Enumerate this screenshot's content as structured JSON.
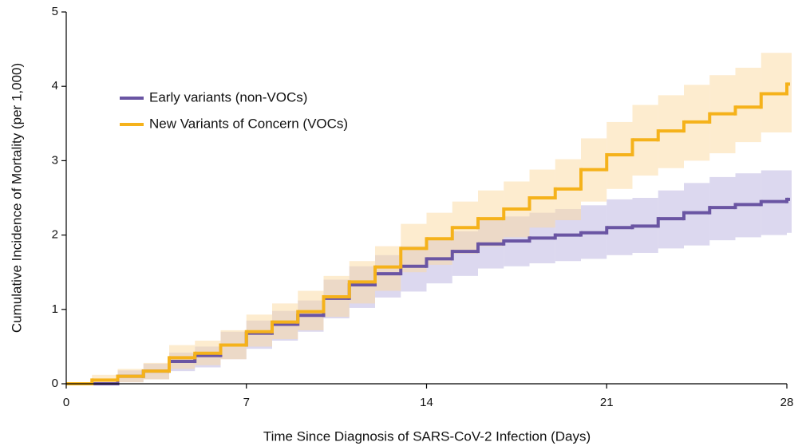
{
  "chart_data": {
    "type": "step",
    "x_label": "Time Since Diagnosis of SARS-CoV-2 Infection (Days)",
    "y_label": "Cumulative Incidence of Mortality (per 1,000)",
    "x": [
      0,
      1,
      2,
      3,
      4,
      5,
      6,
      7,
      8,
      9,
      10,
      11,
      12,
      13,
      14,
      15,
      16,
      17,
      18,
      19,
      20,
      21,
      22,
      23,
      24,
      25,
      26,
      27,
      28
    ],
    "xlim": [
      0,
      28
    ],
    "xticks": [
      0,
      7,
      14,
      21,
      28
    ],
    "ylim": [
      0,
      5
    ],
    "yticks": [
      0,
      1,
      2,
      3,
      4,
      5
    ],
    "series": [
      {
        "name": "Early variants (non-VOCs)",
        "color": "#6a55a3",
        "band_color": "#b9b1e0",
        "values": [
          0,
          0,
          0.1,
          0.17,
          0.3,
          0.38,
          0.52,
          0.68,
          0.8,
          0.92,
          1.15,
          1.33,
          1.48,
          1.58,
          1.68,
          1.78,
          1.88,
          1.92,
          1.96,
          2.0,
          2.03,
          2.1,
          2.12,
          2.22,
          2.3,
          2.37,
          2.41,
          2.45,
          2.48
        ],
        "lower": [
          0,
          0,
          0.02,
          0.06,
          0.17,
          0.22,
          0.33,
          0.47,
          0.58,
          0.7,
          0.88,
          1.02,
          1.16,
          1.24,
          1.35,
          1.45,
          1.55,
          1.58,
          1.62,
          1.65,
          1.68,
          1.73,
          1.76,
          1.82,
          1.86,
          1.93,
          1.97,
          2.0,
          2.03
        ],
        "upper": [
          0,
          0,
          0.18,
          0.27,
          0.42,
          0.5,
          0.7,
          0.85,
          0.98,
          1.12,
          1.4,
          1.58,
          1.73,
          1.85,
          1.95,
          2.05,
          2.2,
          2.25,
          2.3,
          2.35,
          2.4,
          2.48,
          2.5,
          2.6,
          2.7,
          2.78,
          2.83,
          2.87,
          2.87
        ]
      },
      {
        "name": "New Variants of Concern (VOCs)",
        "color": "#f5b21b",
        "band_color": "#fcd9a0",
        "values": [
          0,
          0.05,
          0.1,
          0.17,
          0.35,
          0.41,
          0.52,
          0.7,
          0.83,
          0.97,
          1.17,
          1.37,
          1.57,
          1.82,
          1.95,
          2.1,
          2.22,
          2.35,
          2.5,
          2.62,
          2.88,
          3.08,
          3.28,
          3.4,
          3.52,
          3.63,
          3.72,
          3.9,
          4.03
        ],
        "lower": [
          0,
          0,
          0.02,
          0.06,
          0.2,
          0.25,
          0.33,
          0.5,
          0.6,
          0.72,
          0.9,
          1.08,
          1.25,
          1.5,
          1.6,
          1.75,
          1.85,
          1.97,
          2.1,
          2.2,
          2.45,
          2.62,
          2.8,
          2.9,
          3.0,
          3.1,
          3.25,
          3.38,
          3.38
        ],
        "upper": [
          0,
          0.12,
          0.2,
          0.28,
          0.52,
          0.58,
          0.72,
          0.93,
          1.08,
          1.25,
          1.45,
          1.65,
          1.85,
          2.15,
          2.3,
          2.45,
          2.6,
          2.72,
          2.88,
          3.02,
          3.3,
          3.52,
          3.75,
          3.88,
          4.02,
          4.15,
          4.25,
          4.45,
          4.45
        ]
      }
    ]
  }
}
